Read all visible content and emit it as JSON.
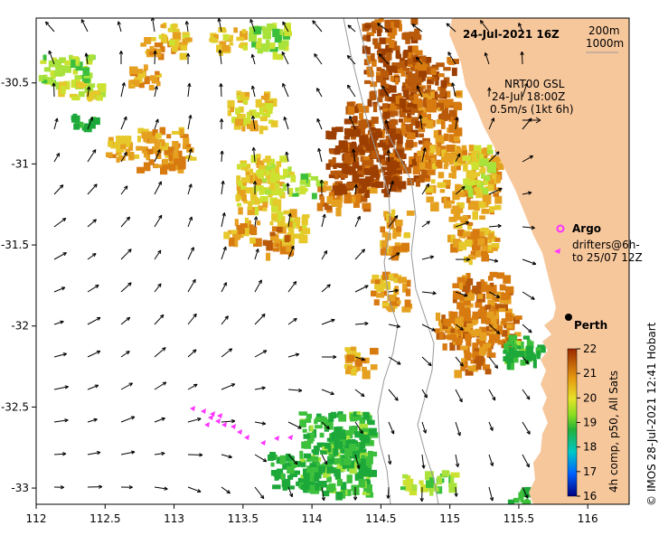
{
  "title": "24-Jul-2021 16Z",
  "scale_labels": [
    "200m",
    "1000m"
  ],
  "current_source": {
    "line1": "NRT00 GSL",
    "line2": "24-Jul 18:00Z",
    "line3": "0.5m/s (1kt 6h)"
  },
  "legend": {
    "argo": "Argo",
    "drifters_line1": "drifters@6h-",
    "drifters_line2": "to 25/07 12Z",
    "colorbar_label": "4h comp, p50, All Sats",
    "colorbar_ticks": [
      "22",
      "21",
      "20",
      "19",
      "18",
      "17",
      "16"
    ],
    "colorbar_range": [
      16,
      22
    ]
  },
  "place": "Perth",
  "credit": "© IMOS 28-Jul-2021 12:41 Hobart",
  "axes": {
    "x_ticks": [
      "112",
      "112.5",
      "113",
      "113.5",
      "114",
      "114.5",
      "115",
      "115.5",
      "116"
    ],
    "y_ticks": [
      "-30.5",
      "-31",
      "-31.5",
      "-32",
      "-32.5",
      "-33"
    ],
    "lon_range": [
      112,
      116.3
    ],
    "lat_range": [
      -33.1,
      -30.1
    ]
  },
  "colors": {
    "land": "#f7c79c",
    "argo": "#ff33ff",
    "drifter": "#ff33ff"
  }
}
